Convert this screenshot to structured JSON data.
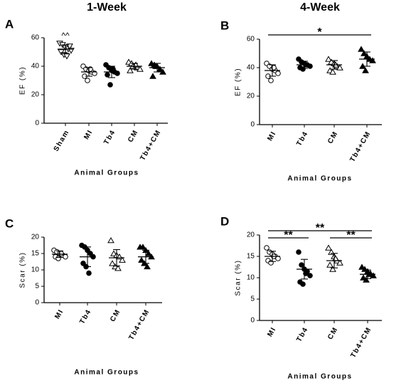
{
  "chart_data": [
    {
      "type": "scatter",
      "label": "A",
      "title": "1-Week",
      "ylabel": "EF (%)",
      "xlabel": "Animal Groups",
      "categories": [
        "Sham",
        "MI",
        "Tb4",
        "CM",
        "Tb4+CM"
      ],
      "markers": [
        "triangle-down-open",
        "circle-open",
        "circle",
        "triangle-open",
        "triangle"
      ],
      "points": [
        [
          56,
          55,
          53,
          52,
          51,
          50,
          48,
          47,
          54
        ],
        [
          40,
          38,
          37,
          36,
          35,
          33,
          30,
          38
        ],
        [
          41,
          39,
          37,
          36,
          35,
          34,
          27,
          38
        ],
        [
          43,
          42,
          40,
          39,
          38,
          37,
          40,
          41
        ],
        [
          42,
          41,
          40,
          38,
          36,
          33,
          40
        ]
      ],
      "means": [
        52,
        36,
        36,
        40,
        39
      ],
      "sd": [
        3,
        3,
        4,
        2,
        3
      ],
      "ylim": [
        0,
        60
      ],
      "yticks": [
        0,
        20,
        40,
        60
      ],
      "annotations": [
        {
          "text": "^^",
          "from": 0,
          "to": 0
        }
      ]
    },
    {
      "type": "scatter",
      "label": "B",
      "title": "4-Week",
      "ylabel": "EF (%)",
      "xlabel": "Animal Groups",
      "categories": [
        "MI",
        "Tb4",
        "CM",
        "Tb4+CM"
      ],
      "markers": [
        "circle-open",
        "circle",
        "triangle-open",
        "triangle"
      ],
      "points": [
        [
          43,
          41,
          39,
          38,
          36,
          34,
          31,
          40
        ],
        [
          46,
          44,
          43,
          42,
          41,
          40,
          39,
          42
        ],
        [
          46,
          44,
          43,
          41,
          40,
          38,
          37,
          42
        ],
        [
          53,
          50,
          48,
          46,
          45,
          41,
          38
        ]
      ],
      "means": [
        38,
        42,
        42,
        46
      ],
      "sd": [
        4,
        2.5,
        3,
        5
      ],
      "ylim": [
        0,
        60
      ],
      "yticks": [
        0,
        20,
        40,
        60
      ],
      "annotations": [
        {
          "text": "*",
          "from": 0,
          "to": 3
        }
      ]
    },
    {
      "type": "scatter",
      "label": "C",
      "ylabel": "Scar (%)",
      "xlabel": "Animal Groups",
      "categories": [
        "MI",
        "Tb4",
        "CM",
        "Tb4+CM"
      ],
      "markers": [
        "circle-open",
        "circle",
        "triangle-open",
        "triangle"
      ],
      "points": [
        [
          16,
          15.5,
          15,
          14.5,
          14,
          14,
          13.5,
          15
        ],
        [
          17.5,
          17,
          16,
          15,
          14,
          12,
          11,
          9
        ],
        [
          19,
          15,
          14.5,
          14,
          13,
          12,
          11,
          10.5
        ],
        [
          17,
          17,
          16,
          15,
          14,
          13,
          12,
          11
        ]
      ],
      "means": [
        14.8,
        14,
        13.7,
        14
      ],
      "sd": [
        1,
        3,
        2.5,
        2
      ],
      "ylim": [
        0,
        20
      ],
      "yticks": [
        0,
        5,
        10,
        15,
        20
      ],
      "annotations": []
    },
    {
      "type": "scatter",
      "label": "D",
      "ylabel": "Scar (%)",
      "xlabel": "Animal Groups",
      "categories": [
        "MI",
        "Tb4",
        "CM",
        "Tb4+CM"
      ],
      "markers": [
        "circle-open",
        "circle",
        "triangle-open",
        "triangle"
      ],
      "points": [
        [
          17,
          16,
          15.5,
          15,
          14.5,
          14,
          13.5,
          15
        ],
        [
          16,
          13,
          12,
          11.5,
          10.5,
          9,
          8.5,
          11
        ],
        [
          17,
          16,
          15,
          14,
          13.5,
          13,
          12,
          14.5
        ],
        [
          12.5,
          12,
          11.5,
          11,
          10.5,
          10,
          9.5,
          10.8
        ]
      ],
      "means": [
        15,
        12,
        14,
        10.8
      ],
      "sd": [
        1.2,
        2.3,
        1.7,
        1
      ],
      "ylim": [
        0,
        20
      ],
      "yticks": [
        0,
        5,
        10,
        15,
        20
      ],
      "annotations": [
        {
          "text": "**",
          "from": 0,
          "to": 3
        },
        {
          "text": "**",
          "from": 0,
          "to": 1
        },
        {
          "text": "**",
          "from": 2,
          "to": 3
        }
      ]
    }
  ]
}
